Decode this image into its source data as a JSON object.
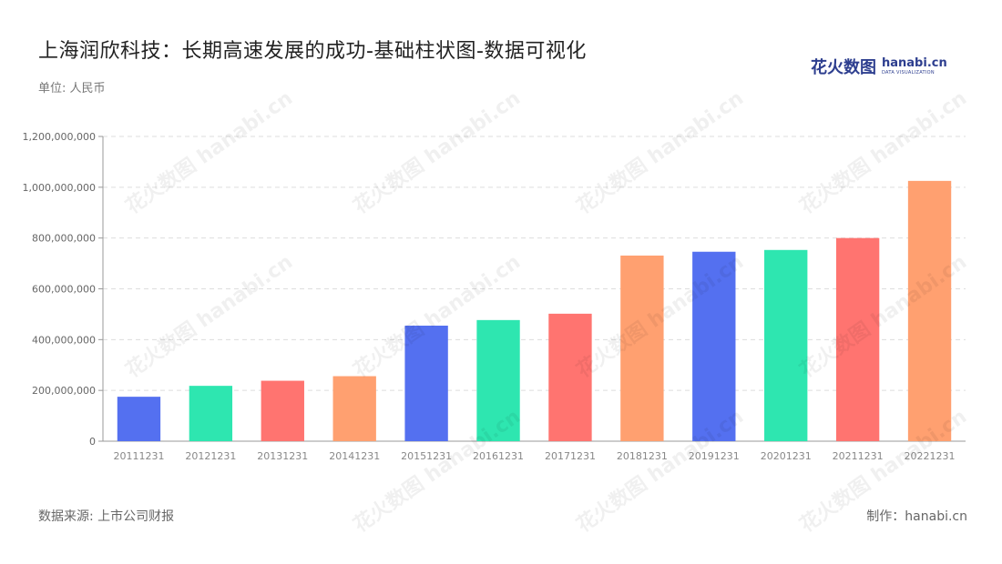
{
  "header": {
    "title": "上海润欣科技：长期高速发展的成功-基础柱状图-数据可视化",
    "unit": "单位: 人民币"
  },
  "logo": {
    "cn": "花火数图",
    "en": "hanabi.cn",
    "sub": "DATA VISUALIZATION"
  },
  "footer": {
    "source": "数据来源: 上市公司财报",
    "maker": "制作：hanabi.cn"
  },
  "watermark": {
    "text": "花火数图 hanabi.cn"
  },
  "chart_data": {
    "type": "bar",
    "categories": [
      "20111231",
      "20121231",
      "20131231",
      "20141231",
      "20151231",
      "20161231",
      "20171231",
      "20181231",
      "20191231",
      "20201231",
      "20211231",
      "20221231"
    ],
    "values": [
      175000000,
      218000000,
      238000000,
      256000000,
      455000000,
      477000000,
      502000000,
      731000000,
      746000000,
      753000000,
      800000000,
      1025000000
    ],
    "colors": [
      "#5470f0",
      "#2ee6b0",
      "#ff7470",
      "#ffa070",
      "#5470f0",
      "#2ee6b0",
      "#ff7470",
      "#ffa070",
      "#5470f0",
      "#2ee6b0",
      "#ff7470",
      "#ffa070"
    ],
    "yticks": [
      "0",
      "200,000,000",
      "400,000,000",
      "600,000,000",
      "800,000,000",
      "1,000,000,000",
      "1,200,000,000"
    ],
    "ylim": [
      0,
      1200000000
    ],
    "grid": true,
    "xlabel": "",
    "ylabel": ""
  }
}
